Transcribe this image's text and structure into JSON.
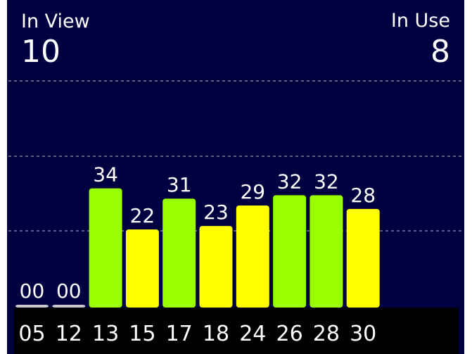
{
  "header": {
    "in_view_label": "In View",
    "in_view": "10",
    "in_use_label": "In Use",
    "in_use": "8"
  },
  "chart_data": {
    "type": "bar",
    "categories": [
      "05",
      "12",
      "13",
      "15",
      "17",
      "18",
      "24",
      "26",
      "28",
      "30"
    ],
    "values": [
      0,
      0,
      34,
      22,
      31,
      23,
      29,
      32,
      32,
      28
    ],
    "value_labels": [
      "00",
      "00",
      "34",
      "22",
      "31",
      "23",
      "29",
      "32",
      "32",
      "28"
    ],
    "colors": [
      "#c8c8c8",
      "#c8c8c8",
      "#99ff00",
      "#ffff00",
      "#99ff00",
      "#ffff00",
      "#ffff00",
      "#99ff00",
      "#99ff00",
      "#ffff00"
    ],
    "ylim": [
      0,
      88
    ]
  }
}
